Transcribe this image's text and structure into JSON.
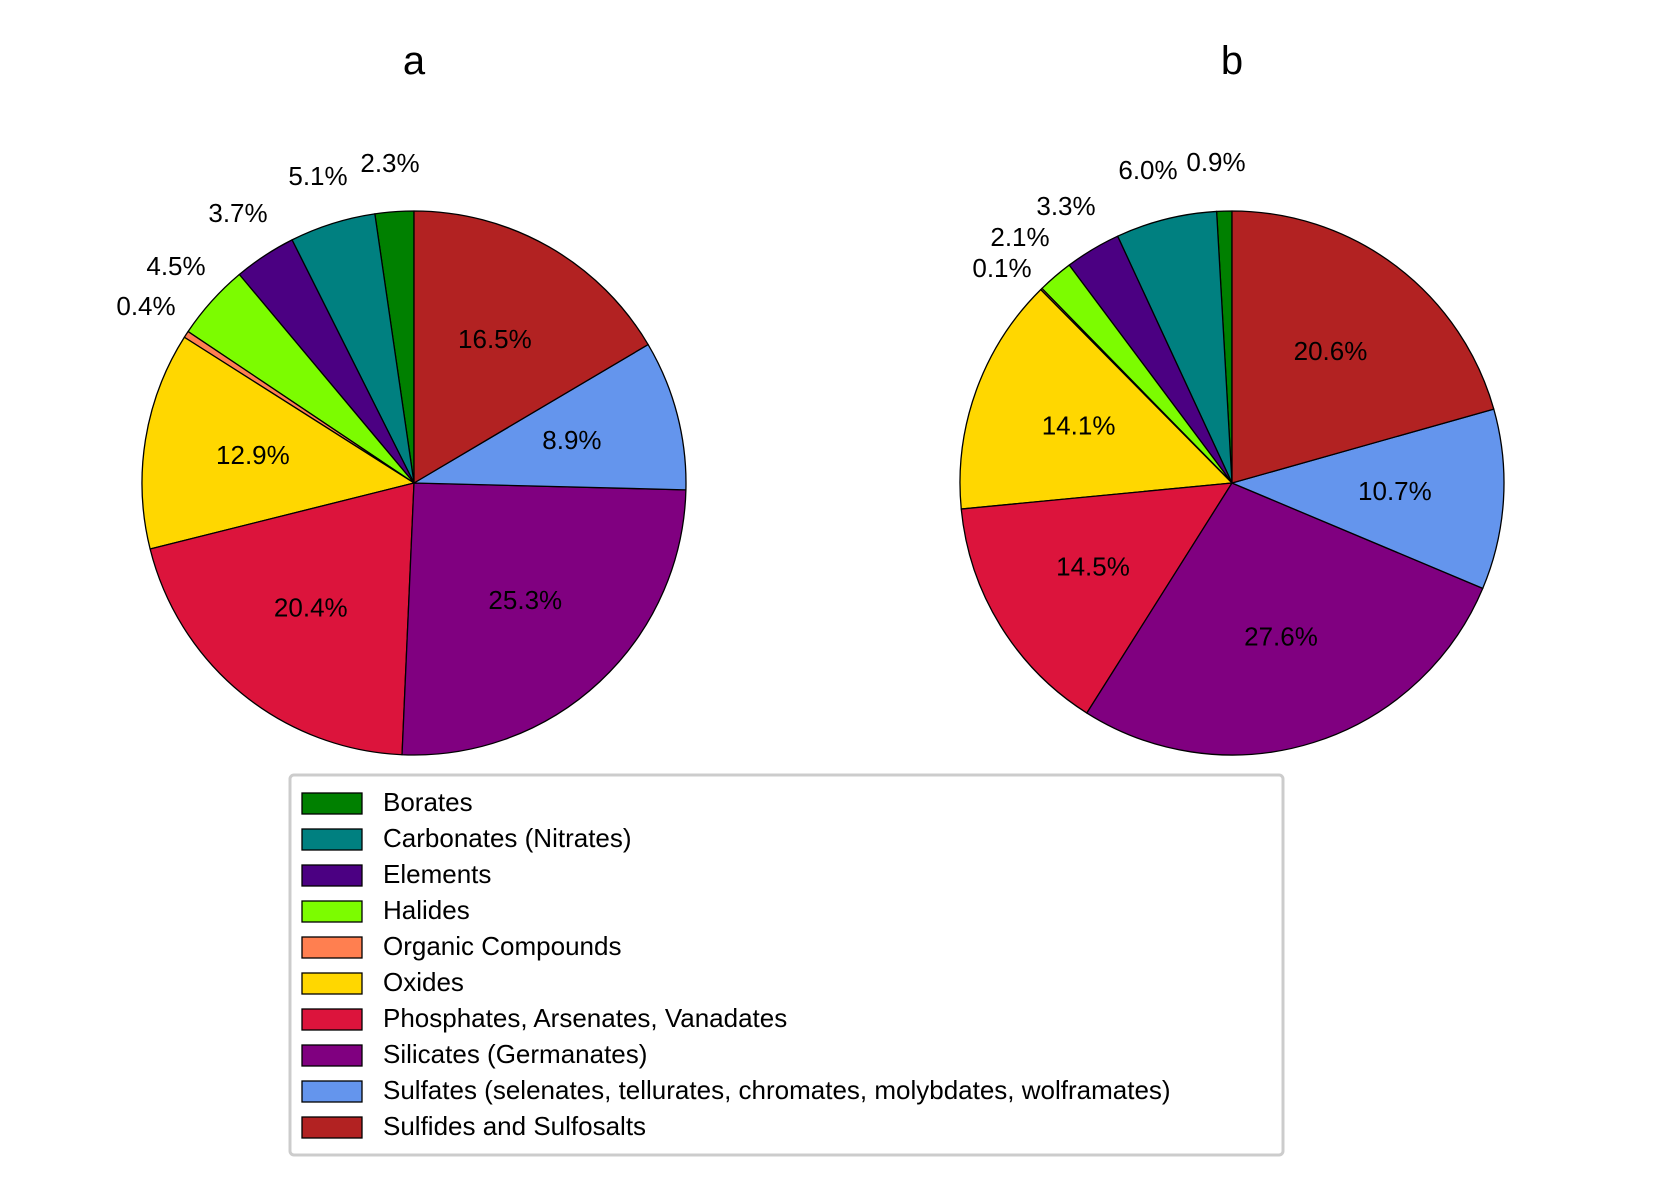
{
  "chart_data": [
    {
      "type": "pie",
      "title": "a",
      "start_angle_deg": 90,
      "direction": "counterclockwise",
      "slices": [
        {
          "label": "Borates",
          "value": 2.3,
          "label_text": "2.3%",
          "color": "#008000"
        },
        {
          "label": "Carbonates (Nitrates)",
          "value": 5.1,
          "label_text": "5.1%",
          "color": "#008080"
        },
        {
          "label": "Elements",
          "value": 3.7,
          "label_text": "3.7%",
          "color": "#4B0082"
        },
        {
          "label": "Halides",
          "value": 4.5,
          "label_text": "4.5%",
          "color": "#7CFC00"
        },
        {
          "label": "Organic Compounds",
          "value": 0.4,
          "label_text": "0.4%",
          "color": "#FF7F50"
        },
        {
          "label": "Oxides",
          "value": 12.9,
          "label_text": "12.9%",
          "color": "#FFD700"
        },
        {
          "label": "Phosphates, Arsenates, Vanadates",
          "value": 20.4,
          "label_text": "20.4%",
          "color": "#DC143C"
        },
        {
          "label": "Silicates (Germanates)",
          "value": 25.3,
          "label_text": "25.3%",
          "color": "#800080"
        },
        {
          "label": "Sulfates (selenates, tellurates, chromates, molybdates, wolframates)",
          "value": 8.9,
          "label_text": "8.9%",
          "color": "#6495ED"
        },
        {
          "label": "Sulfides and Sulfosalts",
          "value": 16.5,
          "label_text": "16.5%",
          "color": "#B22222"
        }
      ]
    },
    {
      "type": "pie",
      "title": "b",
      "start_angle_deg": 90,
      "direction": "counterclockwise",
      "slices": [
        {
          "label": "Borates",
          "value": 0.9,
          "label_text": "0.9%",
          "color": "#008000"
        },
        {
          "label": "Carbonates (Nitrates)",
          "value": 6.0,
          "label_text": "6.0%",
          "color": "#008080"
        },
        {
          "label": "Elements",
          "value": 3.3,
          "label_text": "3.3%",
          "color": "#4B0082"
        },
        {
          "label": "Halides",
          "value": 2.1,
          "label_text": "2.1%",
          "color": "#7CFC00"
        },
        {
          "label": "Organic Compounds",
          "value": 0.1,
          "label_text": "0.1%",
          "color": "#FF7F50"
        },
        {
          "label": "Oxides",
          "value": 14.1,
          "label_text": "14.1%",
          "color": "#FFD700"
        },
        {
          "label": "Phosphates, Arsenates, Vanadates",
          "value": 14.5,
          "label_text": "14.5%",
          "color": "#DC143C"
        },
        {
          "label": "Silicates (Germanates)",
          "value": 27.6,
          "label_text": "27.6%",
          "color": "#800080"
        },
        {
          "label": "Sulfates (selenates, tellurates, chromates, molybdates, wolframates)",
          "value": 10.7,
          "label_text": "10.7%",
          "color": "#6495ED"
        },
        {
          "label": "Sulfides and Sulfosalts",
          "value": 20.6,
          "label_text": "20.6%",
          "color": "#B22222"
        }
      ]
    }
  ],
  "legend": {
    "placement": "bottom-center",
    "entries": [
      {
        "label": "Borates",
        "color": "#008000"
      },
      {
        "label": "Carbonates (Nitrates)",
        "color": "#008080"
      },
      {
        "label": "Elements",
        "color": "#4B0082"
      },
      {
        "label": "Halides",
        "color": "#7CFC00"
      },
      {
        "label": "Organic Compounds",
        "color": "#FF7F50"
      },
      {
        "label": "Oxides",
        "color": "#FFD700"
      },
      {
        "label": "Phosphates, Arsenates, Vanadates",
        "color": "#DC143C"
      },
      {
        "label": "Silicates (Germanates)",
        "color": "#800080"
      },
      {
        "label": "Sulfates (selenates, tellurates, chromates, molybdates, wolframates)",
        "color": "#6495ED"
      },
      {
        "label": "Sulfides and Sulfosalts",
        "color": "#B22222"
      }
    ]
  }
}
